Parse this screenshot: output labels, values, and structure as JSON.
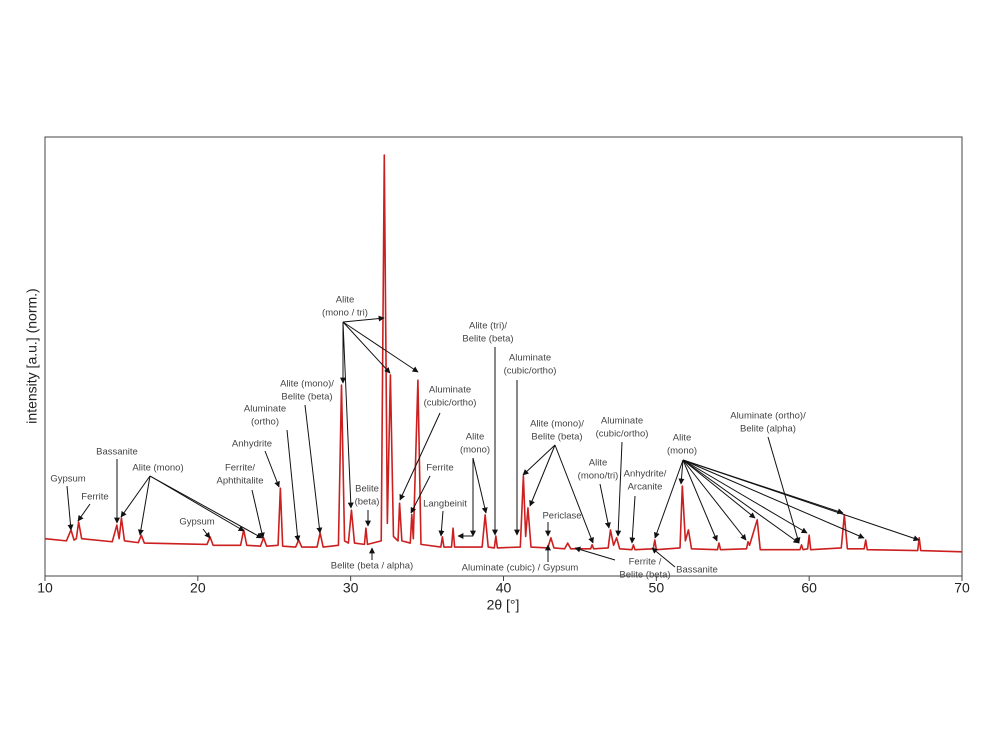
{
  "chart_data": {
    "type": "line",
    "xlabel": "2θ [°]",
    "ylabel": "intensity [a.u.] (norm.)",
    "xlim": [
      10,
      70
    ],
    "xticks": [
      10,
      20,
      30,
      40,
      50,
      60,
      70
    ],
    "ylim": [
      0,
      1
    ],
    "color": "#cc1f1f",
    "x": [
      10.0,
      11.4,
      11.7,
      11.9,
      12.05,
      12.2,
      12.4,
      14.4,
      14.7,
      14.85,
      15.0,
      15.2,
      16.1,
      16.3,
      16.5,
      20.6,
      20.8,
      21.0,
      22.8,
      23.0,
      23.2,
      24.1,
      24.3,
      24.5,
      25.25,
      25.4,
      25.55,
      26.4,
      26.6,
      26.8,
      27.8,
      28.0,
      28.2,
      29.2,
      29.4,
      29.6,
      29.85,
      30.05,
      30.25,
      30.9,
      31.0,
      31.1,
      32.0,
      32.2,
      32.4,
      32.6,
      32.8,
      33.1,
      33.2,
      33.35,
      33.9,
      34.0,
      34.1,
      34.4,
      34.6,
      35.9,
      36.0,
      36.1,
      36.6,
      36.7,
      36.8,
      38.6,
      38.8,
      39.0,
      39.4,
      39.5,
      39.6,
      41.1,
      41.3,
      41.45,
      41.6,
      41.8,
      42.9,
      43.1,
      43.3,
      44.0,
      44.2,
      44.4,
      45.7,
      45.8,
      45.9,
      46.85,
      47.0,
      47.2,
      47.4,
      47.6,
      48.4,
      48.5,
      48.6,
      49.8,
      49.9,
      50.0,
      51.55,
      51.7,
      51.9,
      52.1,
      52.3,
      54.0,
      54.1,
      54.2,
      55.9,
      56.0,
      56.1,
      56.6,
      56.8,
      59.4,
      59.5,
      59.6,
      59.9,
      60.0,
      60.1,
      62.1,
      62.3,
      62.5,
      63.6,
      63.7,
      63.8,
      67.1,
      67.2,
      67.3,
      70.0
    ],
    "values": [
      0.085,
      0.08,
      0.105,
      0.082,
      0.085,
      0.123,
      0.085,
      0.078,
      0.116,
      0.085,
      0.132,
      0.08,
      0.076,
      0.093,
      0.075,
      0.072,
      0.089,
      0.07,
      0.07,
      0.105,
      0.07,
      0.068,
      0.087,
      0.068,
      0.07,
      0.2,
      0.068,
      0.066,
      0.082,
      0.066,
      0.066,
      0.098,
      0.066,
      0.07,
      0.435,
      0.08,
      0.075,
      0.15,
      0.075,
      0.072,
      0.109,
      0.072,
      0.08,
      0.959,
      0.12,
      0.458,
      0.09,
      0.08,
      0.166,
      0.08,
      0.075,
      0.14,
      0.085,
      0.446,
      0.072,
      0.066,
      0.089,
      0.066,
      0.066,
      0.109,
      0.066,
      0.066,
      0.139,
      0.066,
      0.064,
      0.091,
      0.064,
      0.066,
      0.228,
      0.09,
      0.155,
      0.066,
      0.064,
      0.087,
      0.064,
      0.062,
      0.075,
      0.062,
      0.062,
      0.071,
      0.062,
      0.064,
      0.105,
      0.07,
      0.087,
      0.062,
      0.06,
      0.071,
      0.06,
      0.062,
      0.082,
      0.06,
      0.064,
      0.205,
      0.08,
      0.105,
      0.062,
      0.06,
      0.075,
      0.06,
      0.062,
      0.078,
      0.07,
      0.128,
      0.06,
      0.06,
      0.071,
      0.06,
      0.062,
      0.093,
      0.06,
      0.064,
      0.139,
      0.062,
      0.062,
      0.082,
      0.06,
      0.058,
      0.087,
      0.058,
      0.055
    ],
    "annotations": [
      [
        "Gypsum"
      ],
      [
        "Ferrite"
      ],
      [
        "Bassanite"
      ],
      [
        "Alite (mono)"
      ],
      [
        "Gypsum"
      ],
      [
        "Anhydrite"
      ],
      [
        "Ferrite/",
        "Aphthitalite"
      ],
      [
        "Aluminate",
        "(ortho)"
      ],
      [
        "Alite (mono)/",
        "Belite (beta)"
      ],
      [
        "Alite",
        "(mono / tri)"
      ],
      [
        "Belite",
        "(beta)"
      ],
      [
        "Aluminate",
        "(cubic/ortho)"
      ],
      [
        "Ferrite"
      ],
      [
        "Langbeinit"
      ],
      [
        "Alite",
        "(mono)"
      ],
      [
        "Alite (tri)/",
        "Belite (beta)"
      ],
      [
        "Aluminate",
        "(cubic/ortho)"
      ],
      [
        "Alite (mono)/",
        "Belite (beta)"
      ],
      [
        "Periclase"
      ],
      [
        "Alite",
        "(mono/tri)"
      ],
      [
        "Aluminate",
        "(cubic/ortho)"
      ],
      [
        "Anhydrite/",
        "Arcanite"
      ],
      [
        "Alite",
        "(mono)"
      ],
      [
        "Aluminate (ortho)/",
        "Belite (alpha)"
      ],
      [
        "Belite (beta / alpha)"
      ],
      [
        "Aluminate (cubic) / Gypsum"
      ],
      [
        "Ferrite /",
        "Belite (beta)"
      ],
      [
        "Bassanite"
      ]
    ]
  }
}
